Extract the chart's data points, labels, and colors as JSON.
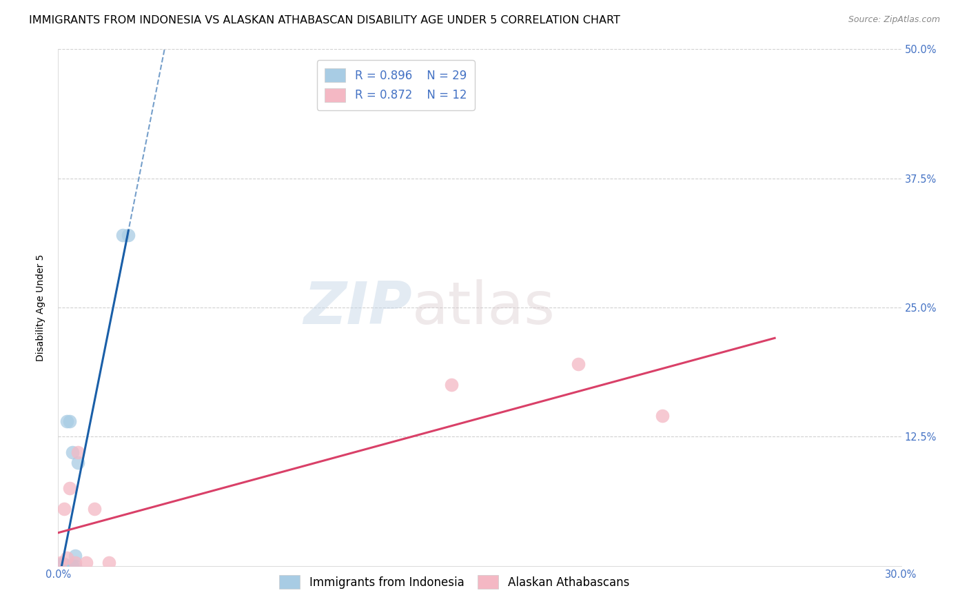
{
  "title": "IMMIGRANTS FROM INDONESIA VS ALASKAN ATHABASCAN DISABILITY AGE UNDER 5 CORRELATION CHART",
  "source": "Source: ZipAtlas.com",
  "ylabel": "Disability Age Under 5",
  "xlim": [
    0.0,
    0.3
  ],
  "ylim": [
    0.0,
    0.5
  ],
  "xtick_positions": [
    0.0,
    0.1,
    0.2,
    0.3
  ],
  "xticklabels": [
    "0.0%",
    "",
    "",
    "30.0%"
  ],
  "ytick_vals": [
    0.0,
    0.125,
    0.25,
    0.375,
    0.5
  ],
  "ytick_labels_right": [
    "",
    "12.5%",
    "25.0%",
    "37.5%",
    "50.0%"
  ],
  "watermark_zip": "ZIP",
  "watermark_atlas": "atlas",
  "blue_series": {
    "label": "Immigrants from Indonesia",
    "R": "0.896",
    "N": "29",
    "color": "#a8cce4",
    "line_color": "#1a5fa8",
    "x": [
      0.0005,
      0.0005,
      0.0008,
      0.001,
      0.001,
      0.001,
      0.001,
      0.001,
      0.001,
      0.0012,
      0.0015,
      0.002,
      0.002,
      0.002,
      0.002,
      0.003,
      0.003,
      0.003,
      0.003,
      0.004,
      0.004,
      0.005,
      0.005,
      0.005,
      0.006,
      0.006,
      0.007,
      0.023,
      0.025
    ],
    "y": [
      0.0,
      0.0,
      0.0,
      0.0,
      0.0,
      0.0,
      0.0,
      0.0,
      0.002,
      0.0,
      0.0,
      0.0,
      0.0,
      0.0,
      0.002,
      0.0,
      0.0,
      0.0,
      0.14,
      0.0,
      0.14,
      0.0,
      0.0,
      0.11,
      0.0,
      0.01,
      0.1,
      0.32,
      0.32
    ]
  },
  "pink_series": {
    "label": "Alaskan Athabascans",
    "R": "0.872",
    "N": "12",
    "color": "#f4b8c4",
    "line_color": "#d94068",
    "x": [
      0.001,
      0.002,
      0.003,
      0.004,
      0.006,
      0.007,
      0.01,
      0.013,
      0.018,
      0.14,
      0.185,
      0.215
    ],
    "y": [
      0.003,
      0.055,
      0.008,
      0.075,
      0.003,
      0.11,
      0.003,
      0.055,
      0.003,
      0.175,
      0.195,
      0.145
    ]
  },
  "background_color": "#ffffff",
  "grid_color": "#d0d0d0",
  "title_fontsize": 11.5,
  "axis_fontsize": 10,
  "tick_fontsize": 10.5,
  "legend_fontsize": 12
}
